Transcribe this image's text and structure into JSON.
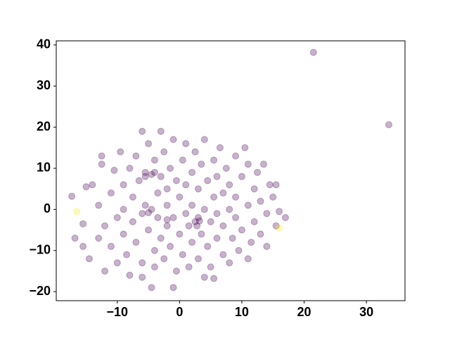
{
  "chart_data": {
    "type": "scatter",
    "xlim": [
      -19.8,
      36.2
    ],
    "ylim": [
      -22.2,
      41.0
    ],
    "xticks": [
      {
        "value": -10,
        "label": "−10"
      },
      0,
      10,
      20,
      30
    ],
    "yticks": [
      {
        "value": -20,
        "label": "−20"
      },
      {
        "value": -10,
        "label": "−10"
      },
      0,
      10,
      20,
      30,
      40
    ],
    "grid": false,
    "series": [
      {
        "color": "#440154",
        "x": [
          -17.3,
          -16.8,
          -15.5,
          -15,
          -15.5,
          -14.5,
          -14,
          -13,
          -13,
          -12.5,
          -12.5,
          -12,
          -12,
          -11,
          -11,
          -10.5,
          -10,
          -10,
          -9.5,
          -9,
          -9,
          -9,
          -8.5,
          -8,
          -8,
          -7.5,
          -7.5,
          -7,
          -7,
          -6.5,
          -6,
          -6,
          -6,
          -6,
          -5.5,
          -5.5,
          -5,
          -5,
          -4.5,
          -4.5,
          -4.5,
          -4,
          -4,
          -4,
          -3.5,
          -3.5,
          -3,
          -3,
          -3,
          -2.5,
          -2.5,
          -2,
          -2,
          -2,
          -1.5,
          -1.5,
          -1,
          -1,
          -1,
          -0.5,
          -0.5,
          0,
          0,
          0.5,
          0.5,
          1,
          1,
          1,
          1.5,
          1.5,
          2,
          2,
          2,
          2.5,
          2.5,
          3,
          3,
          3,
          3.5,
          3.5,
          4,
          4,
          4,
          4.5,
          4.5,
          5,
          5,
          5.5,
          5.5,
          5.5,
          6,
          6,
          6,
          6.5,
          7,
          7,
          7,
          7.5,
          8,
          8,
          8,
          8.5,
          9,
          9,
          9,
          9.5,
          10,
          10,
          10.5,
          11,
          11,
          11,
          11.5,
          12,
          12,
          12.5,
          13,
          13,
          13.5,
          14,
          14,
          14.5,
          15,
          15.5,
          15.5,
          16,
          17,
          -2,
          3.2,
          2.8,
          -5,
          -5.5,
          -4,
          21.5,
          33.6
        ],
        "y": [
          3.2,
          -7,
          -3.5,
          5.5,
          -9,
          -12,
          6,
          1,
          -7,
          11,
          13,
          -4,
          -15,
          4,
          -9,
          9.5,
          -2,
          -13,
          14,
          6,
          0,
          -6,
          -11,
          10,
          -16,
          3,
          -3,
          13,
          -8,
          7,
          19,
          -1,
          -13,
          -16.5,
          9,
          1,
          -5,
          16,
          8.5,
          0,
          -19,
          -10,
          12,
          -14,
          4,
          -2,
          19,
          8,
          -7,
          14,
          -12,
          1,
          -4,
          5,
          10,
          -9,
          -19,
          17,
          -2,
          7,
          -15,
          3,
          -6,
          12,
          -11,
          -1,
          16,
          6,
          -4,
          -14,
          9,
          -8,
          1,
          -3,
          14,
          -2,
          -12,
          5,
          -6,
          11,
          -16.5,
          0,
          17,
          -9,
          7,
          -3,
          -14,
          -16.8,
          3,
          12,
          -7,
          -1,
          8,
          15,
          -11,
          4,
          -4,
          10,
          -13,
          0,
          6,
          -7,
          13,
          -2,
          3,
          -10,
          8,
          -5,
          15,
          1,
          -12,
          11,
          -8,
          5,
          -3,
          9,
          -6,
          2,
          11,
          -9,
          -1,
          6,
          3,
          -4,
          6,
          -0.5,
          -2,
          -2.5,
          -2.8,
          -4,
          -0.8,
          8,
          9,
          38.2,
          20.6
        ]
      },
      {
        "color": "#fde725",
        "x": [
          -16.5,
          16
        ],
        "y": [
          -0.5,
          -4.5
        ]
      }
    ]
  }
}
